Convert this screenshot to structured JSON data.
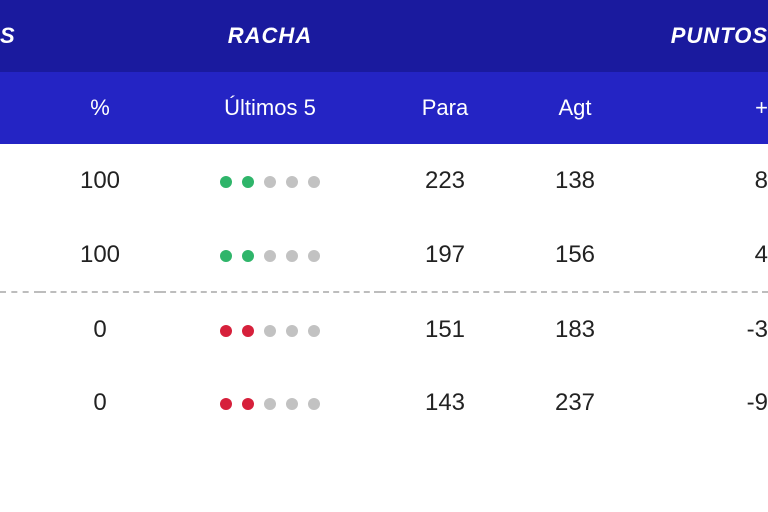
{
  "colors": {
    "header_top_bg": "#1a1a9e",
    "header_sub_bg": "#2424c4",
    "header_text": "#ffffff",
    "cell_text": "#222222",
    "row_bg": "#ffffff",
    "divider": "#bdbdbd",
    "dot_win": "#2fb56a",
    "dot_loss": "#d6203b",
    "dot_empty": "#c2c2c2"
  },
  "header_groups": {
    "left": "S",
    "racha": "RACHA",
    "puntos": "PUNTOS"
  },
  "columns": {
    "pct": "%",
    "last5": "Últimos 5",
    "para": "Para",
    "agt": "Agt",
    "diff": "+"
  },
  "rows": [
    {
      "pct": "100",
      "last5": [
        "W",
        "W",
        "E",
        "E",
        "E"
      ],
      "para": "223",
      "agt": "138",
      "diff": "8"
    },
    {
      "pct": "100",
      "last5": [
        "W",
        "W",
        "E",
        "E",
        "E"
      ],
      "para": "197",
      "agt": "156",
      "diff": "4"
    },
    {
      "pct": "0",
      "last5": [
        "L",
        "L",
        "E",
        "E",
        "E"
      ],
      "para": "151",
      "agt": "183",
      "diff": "-3"
    },
    {
      "pct": "0",
      "last5": [
        "L",
        "L",
        "E",
        "E",
        "E"
      ],
      "para": "143",
      "agt": "237",
      "diff": "-9"
    }
  ],
  "divider_after_row_index": 1
}
